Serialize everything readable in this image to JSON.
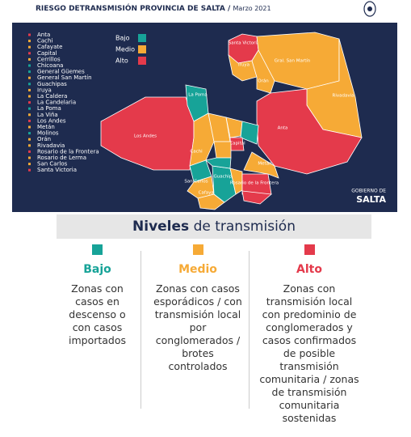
{
  "header": {
    "title": "RIESGO DETRANSMISIÓN PROVINCIA DE SALTA",
    "separator": "/",
    "date": "Marzo 2021"
  },
  "levels": [
    {
      "name": "Bajo",
      "color": "#17a398"
    },
    {
      "name": "Medio",
      "color": "#f6aa36"
    },
    {
      "name": "Alto",
      "color": "#e43a4b"
    }
  ],
  "departments": [
    {
      "name": "Anta",
      "level": "Alto",
      "map_label": "Anta"
    },
    {
      "name": "Cachi",
      "level": "Medio",
      "map_label": "Cachi"
    },
    {
      "name": "Cafayate",
      "level": "Medio",
      "map_label": "Cafayate"
    },
    {
      "name": "Capital",
      "level": "Alto",
      "map_label": "Capital"
    },
    {
      "name": "Cerrillos",
      "level": "Medio"
    },
    {
      "name": "Chicoana",
      "level": "Bajo"
    },
    {
      "name": "General Güemes",
      "level": "Bajo"
    },
    {
      "name": "General San Martín",
      "level": "Medio",
      "map_label": "Gral. San Martín"
    },
    {
      "name": "Guachipas",
      "level": "Bajo",
      "map_label": "Guachipas"
    },
    {
      "name": "Iruya",
      "level": "Medio",
      "map_label": "Iruya"
    },
    {
      "name": "La Caldera",
      "level": "Medio"
    },
    {
      "name": "La Candelaria",
      "level": "Alto"
    },
    {
      "name": "La Poma",
      "level": "Bajo",
      "map_label": "La Poma"
    },
    {
      "name": "La Viña",
      "level": "Medio"
    },
    {
      "name": "Los Andes",
      "level": "Alto",
      "map_label": "Los Andes"
    },
    {
      "name": "Metán",
      "level": "Medio",
      "map_label": "Metán"
    },
    {
      "name": "Molinos",
      "level": "Bajo"
    },
    {
      "name": "Orán",
      "level": "Medio",
      "map_label": "Orán"
    },
    {
      "name": "Rivadavia",
      "level": "Medio",
      "map_label": "Rivadavia"
    },
    {
      "name": "Rosario de la Frontera",
      "level": "Alto",
      "map_label": "Rosario de la Frontera"
    },
    {
      "name": "Rosario de Lerma",
      "level": "Medio"
    },
    {
      "name": "San Carlos",
      "level": "Medio",
      "map_label": "San Carlos"
    },
    {
      "name": "Santa Victoria",
      "level": "Alto",
      "map_label": "Santa Victoria"
    }
  ],
  "logo": {
    "line1": "GOBIERNO DE",
    "line2": "SALTA"
  },
  "section": {
    "title_bold": "Niveles",
    "title_rest": "de transmisión",
    "columns": [
      {
        "title": "Bajo",
        "text": "Zonas con casos en descenso o con casos importados"
      },
      {
        "title": "Medio",
        "text": "Zonas con casos esporádicos / con transmisión local por conglomerados / brotes controlados"
      },
      {
        "title": "Alto",
        "text": "Zonas con transmisión local con predominio de conglomerados y casos confirmados de posible transmisión comunitaria / zonas de transmisión comunitaria sostenidas"
      }
    ]
  }
}
